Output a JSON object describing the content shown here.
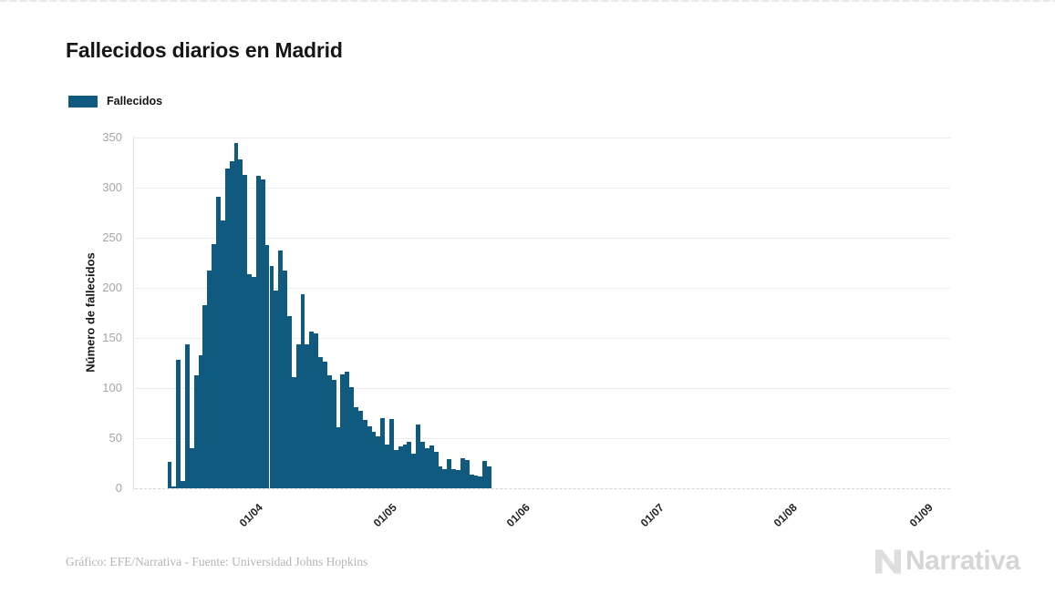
{
  "header": {
    "title": "Fallecidos diarios en Madrid"
  },
  "legend": {
    "label": "Fallecidos",
    "color": "#0f5a7e"
  },
  "axes": {
    "y_label": "Número de fallecidos"
  },
  "footer": {
    "credit": "Gráfico: EFE/Narrativa - Fuente: Universidad Johns Hopkins"
  },
  "logo": {
    "text": "Narrativa"
  },
  "chart_data": {
    "type": "bar",
    "title": "Fallecidos diarios en Madrid",
    "series_name": "Fallecidos",
    "xlabel": "",
    "ylabel": "Número de fallecidos",
    "ylim": [
      0,
      350
    ],
    "y_ticks": [
      0,
      50,
      100,
      150,
      200,
      250,
      300,
      350
    ],
    "x_ticks": [
      "01/04",
      "01/05",
      "01/06",
      "01/07",
      "01/08",
      "01/09"
    ],
    "grid": "horizontal",
    "legend_position": "top-left",
    "bar_color": "#0f5a7e",
    "dates": [
      "13/03",
      "14/03",
      "15/03",
      "16/03",
      "17/03",
      "18/03",
      "19/03",
      "20/03",
      "21/03",
      "22/03",
      "23/03",
      "24/03",
      "25/03",
      "26/03",
      "27/03",
      "28/03",
      "29/03",
      "30/03",
      "31/03",
      "01/04",
      "02/04",
      "03/04",
      "04/04",
      "05/04",
      "06/04",
      "07/04",
      "08/04",
      "09/04",
      "10/04",
      "11/04",
      "12/04",
      "13/04",
      "14/04",
      "15/04",
      "16/04",
      "17/04",
      "18/04",
      "19/04",
      "20/04",
      "21/04",
      "22/04",
      "23/04",
      "24/04",
      "25/04",
      "26/04",
      "27/04",
      "28/04",
      "29/04",
      "30/04",
      "01/05",
      "02/05",
      "03/05",
      "04/05",
      "05/05",
      "06/05",
      "07/05",
      "08/05",
      "09/05",
      "10/05",
      "11/05",
      "12/05",
      "13/05",
      "14/05",
      "15/05",
      "16/05",
      "17/05",
      "18/05",
      "19/05",
      "20/05",
      "21/05",
      "22/05",
      "23/05",
      "24/05"
    ],
    "values": [
      26,
      2,
      128,
      7,
      144,
      40,
      113,
      133,
      183,
      217,
      244,
      291,
      267,
      319,
      326,
      345,
      328,
      313,
      214,
      211,
      312,
      308,
      243,
      222,
      197,
      237,
      217,
      172,
      111,
      144,
      194,
      144,
      156,
      155,
      131,
      126,
      113,
      108,
      61,
      114,
      116,
      101,
      81,
      77,
      68,
      62,
      56,
      52,
      70,
      44,
      69,
      38,
      42,
      44,
      46,
      35,
      64,
      46,
      40,
      43,
      36,
      22,
      19,
      29,
      19,
      18,
      30,
      28,
      14,
      13,
      12,
      27,
      22
    ]
  }
}
